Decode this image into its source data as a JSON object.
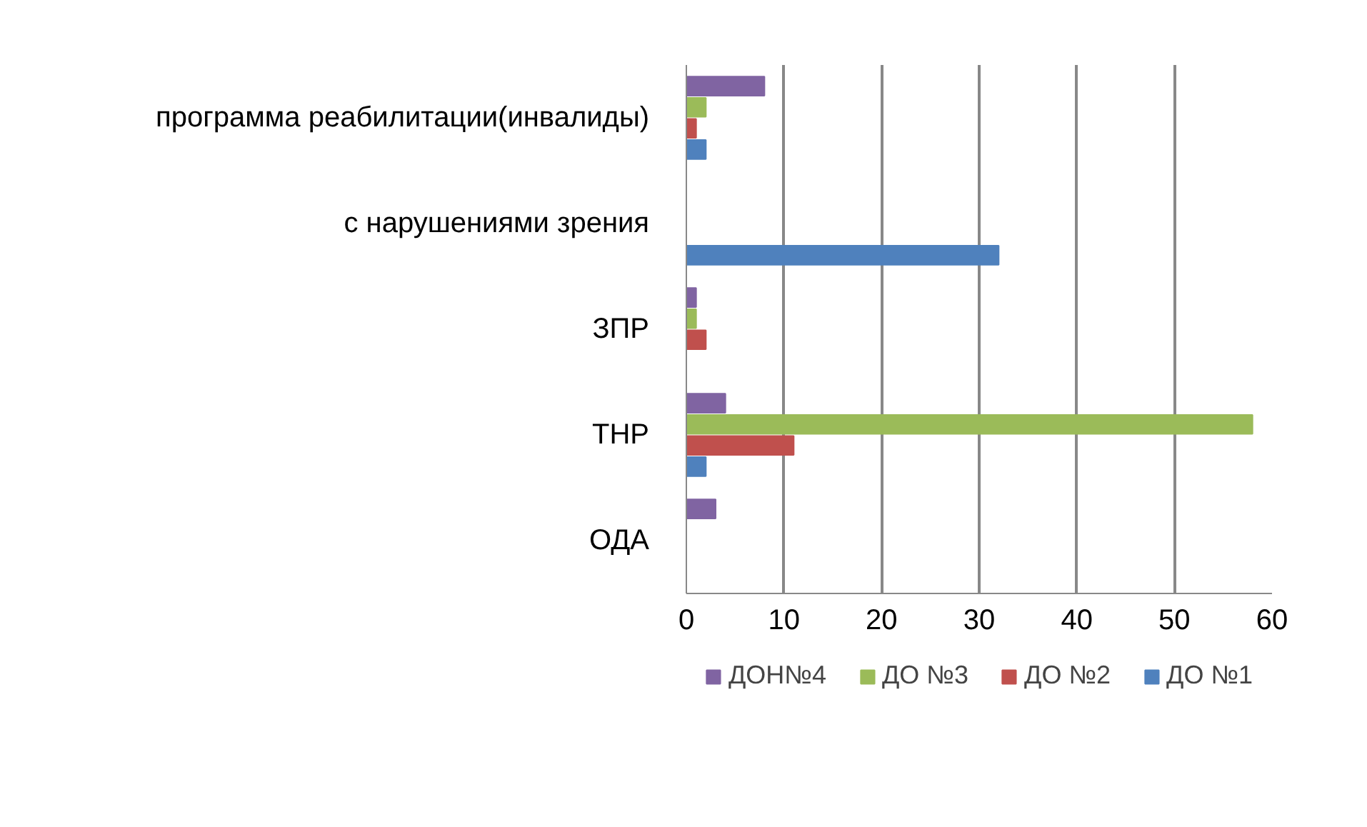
{
  "chart_data": {
    "type": "bar",
    "orientation": "horizontal",
    "categories": [
      "программа реабилитации(инвалиды)",
      "с нарушениями зрения",
      "ЗПР",
      "ТНР",
      "ОДА"
    ],
    "series": [
      {
        "name": "ДОН№4",
        "color": "#8064a2",
        "values": [
          8,
          0,
          1,
          4,
          3
        ]
      },
      {
        "name": "ДО №3",
        "color": "#9bbb59",
        "values": [
          2,
          0,
          1,
          58,
          0
        ]
      },
      {
        "name": "ДО №2",
        "color": "#c0504d",
        "values": [
          1,
          0,
          2,
          11,
          0
        ]
      },
      {
        "name": "ДО №1",
        "color": "#4f81bd",
        "values": [
          2,
          32,
          0,
          2,
          0
        ]
      }
    ],
    "xlim": [
      0,
      60
    ],
    "xticks": [
      0,
      10,
      20,
      30,
      40,
      50,
      60
    ],
    "grid": "x",
    "legend": "bottom"
  }
}
